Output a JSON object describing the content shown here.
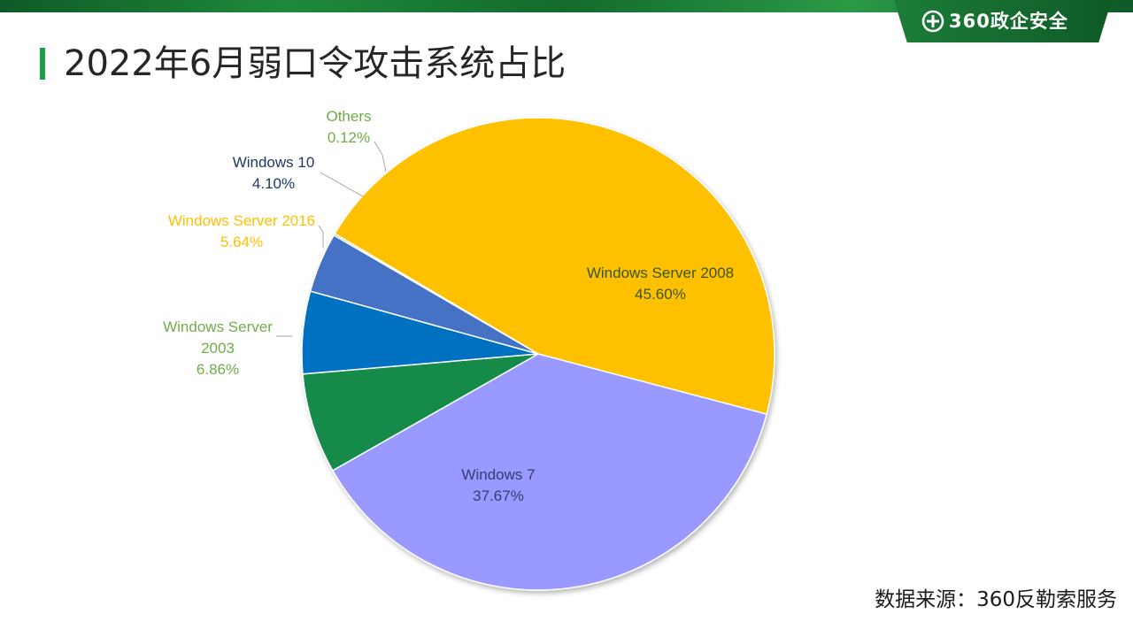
{
  "brand": {
    "logo_text": "360政企安全",
    "logo_icon": "plus-circle-logo-icon",
    "colors": {
      "band": "#1e8a3a",
      "accent": "#1e9f46"
    }
  },
  "page": {
    "title": "2022年6月弱口令攻击系统占比",
    "source": "数据来源：360反勒索服务"
  },
  "chart_data": {
    "type": "pie",
    "title": "",
    "unit": "%",
    "slices": [
      {
        "name": "Windows Server 2008",
        "value": 45.6,
        "label": "45.60%",
        "color": "#ffc000",
        "label_color": "#375623"
      },
      {
        "name": "Windows 7",
        "value": 37.67,
        "label": "37.67%",
        "color": "#9999ff",
        "label_color": "#2f3f6f"
      },
      {
        "name": "Windows Server 2003",
        "value": 6.86,
        "label": "6.86%",
        "color": "#138a4a",
        "label_color": "#70ad47"
      },
      {
        "name": "Windows Server 2016",
        "value": 5.64,
        "label": "5.64%",
        "color": "#0070c0",
        "label_color": "#ffc000"
      },
      {
        "name": "Windows 10",
        "value": 4.1,
        "label": "4.10%",
        "color": "#4472c4",
        "label_color": "#1f3864"
      },
      {
        "name": "Others",
        "value": 0.12,
        "label": "0.12%",
        "color": "#70ad47",
        "label_color": "#70ad47"
      }
    ],
    "legend": "none"
  }
}
